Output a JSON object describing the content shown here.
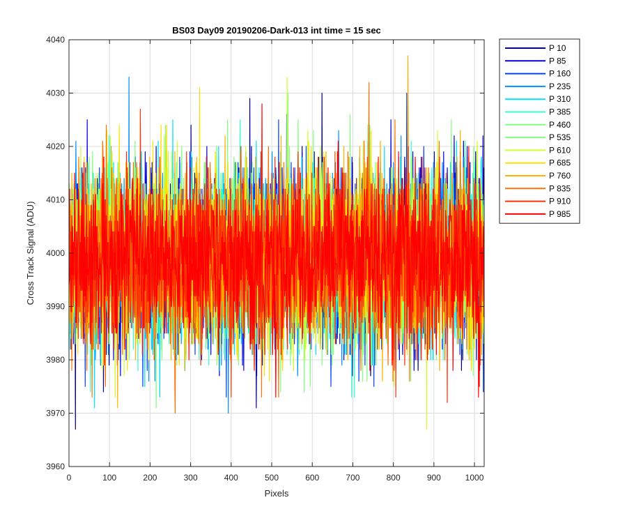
{
  "chart_data": {
    "type": "line",
    "title": "BS03 Day09 20190206-Dark-013 int time = 15 sec",
    "xlabel": "Pixels",
    "ylabel": "Cross Track Signal (ADU)",
    "xlim": [
      0,
      1024
    ],
    "ylim": [
      3960,
      4040
    ],
    "xticks": [
      0,
      100,
      200,
      300,
      400,
      500,
      600,
      700,
      800,
      900,
      1000
    ],
    "yticks": [
      3960,
      3970,
      3980,
      3990,
      4000,
      4010,
      4020,
      4030,
      4040
    ],
    "grid": true,
    "legend_position": "outside-top-right",
    "noise": {
      "mean": 3999,
      "std": 8,
      "points_per_series": 1024
    },
    "series": [
      {
        "name": "P 10",
        "color": "#00008F",
        "notable_points": [
          [
            446,
            4029
          ],
          [
            624,
            4030
          ],
          [
            16,
            3967
          ]
        ]
      },
      {
        "name": "P 85",
        "color": "#0000DF",
        "notable_points": [
          [
            45,
            4025
          ],
          [
            462,
            3971
          ]
        ]
      },
      {
        "name": "P 160",
        "color": "#0040FF",
        "notable_points": [
          [
            833,
            4030
          ],
          [
            537,
            4026
          ]
        ]
      },
      {
        "name": "P 235",
        "color": "#0090FF",
        "notable_points": [
          [
            148,
            4033
          ],
          [
            393,
            3970
          ]
        ]
      },
      {
        "name": "P 310",
        "color": "#00E0FF",
        "notable_points": [
          [
            63,
            3971
          ],
          [
            256,
            4025
          ]
        ]
      },
      {
        "name": "P 385",
        "color": "#30FFCF",
        "notable_points": [
          [
            704,
            3973
          ]
        ]
      },
      {
        "name": "P 460",
        "color": "#80FF80",
        "notable_points": [
          [
            540,
            4030
          ],
          [
            215,
            3971
          ]
        ]
      },
      {
        "name": "P 535",
        "color": "#80FF80",
        "notable_points": [
          [
            693,
            4026
          ],
          [
            580,
            3974
          ]
        ]
      },
      {
        "name": "P 610",
        "color": "#CFFF30",
        "notable_points": [
          [
            538,
            4033
          ],
          [
            882,
            3967
          ]
        ]
      },
      {
        "name": "P 685",
        "color": "#FFE000",
        "notable_points": [
          [
            322,
            4031
          ],
          [
            124,
            4024
          ]
        ]
      },
      {
        "name": "P 760",
        "color": "#FFB000",
        "notable_points": [
          [
            836,
            4037
          ],
          [
            120,
            3971
          ]
        ]
      },
      {
        "name": "P 835",
        "color": "#FF7000",
        "notable_points": [
          [
            262,
            3970
          ],
          [
            740,
            4032
          ]
        ]
      },
      {
        "name": "P 910",
        "color": "#FF3000",
        "notable_points": [
          [
            176,
            4027
          ],
          [
            933,
            3972
          ]
        ]
      },
      {
        "name": "P 985",
        "color": "#FF0000",
        "notable_points": [
          [
            476,
            4028
          ],
          [
            1010,
            3973
          ]
        ]
      }
    ]
  }
}
